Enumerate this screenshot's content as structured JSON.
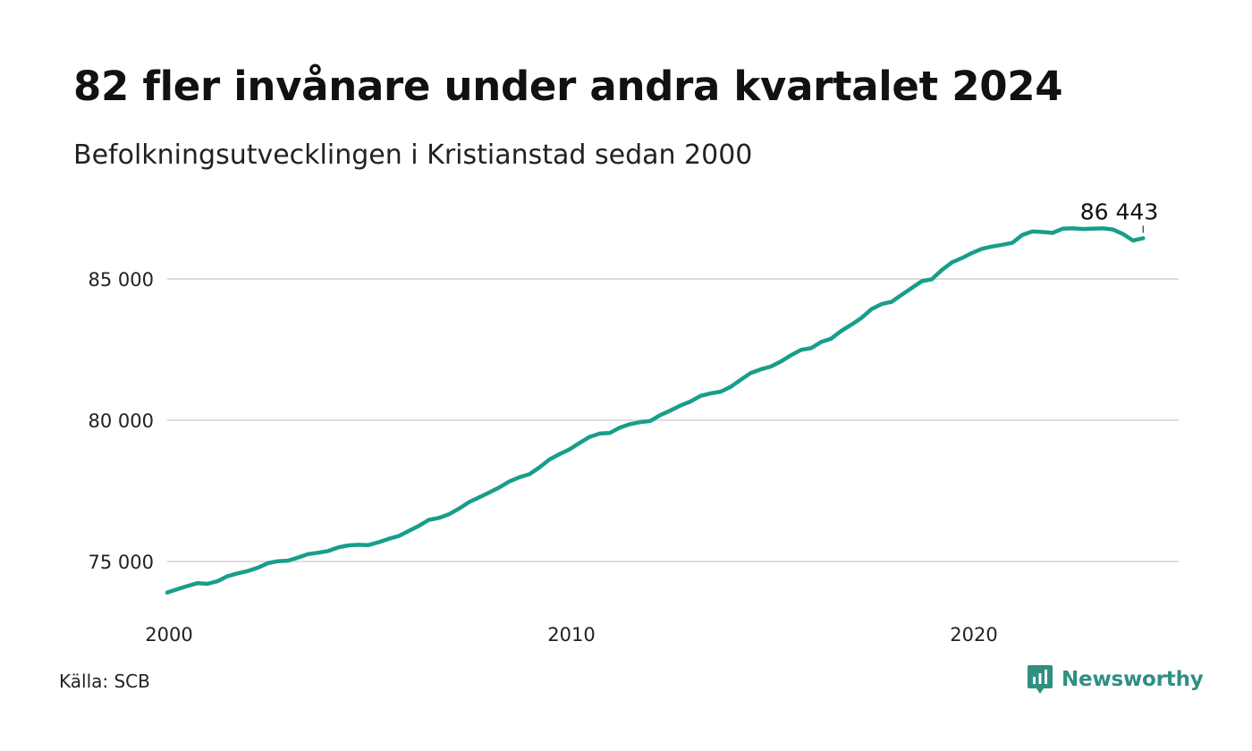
{
  "header": {
    "title": "82 fler invånare under andra kvartalet 2024",
    "subtitle": "Befolkningsutvecklingen i Kristianstad sedan 2000"
  },
  "footer": {
    "source": "Källa: SCB",
    "brand": "Newsworthy",
    "brand_icon": "newsworthy-logo-icon"
  },
  "colors": {
    "line": "#189e8a",
    "grid": "#dddddd",
    "brand": "#2e8f83",
    "text": "#111111"
  },
  "chart_data": {
    "type": "line",
    "title": "82 fler invånare under andra kvartalet 2024",
    "subtitle": "Befolkningsutvecklingen i Kristianstad sedan 2000",
    "xlabel": "",
    "ylabel": "",
    "x_ticks": [
      2000,
      2010,
      2020
    ],
    "y_ticks": [
      75000,
      80000,
      85000
    ],
    "y_tick_labels": [
      "75 000",
      "80 000",
      "85 000"
    ],
    "xlim": [
      2000,
      2025
    ],
    "ylim": [
      73500,
      87500
    ],
    "grid": "horizontal",
    "legend": "none",
    "end_label": "86 443",
    "series": [
      {
        "x": [
          2000.0,
          2000.25,
          2000.5,
          2000.75,
          2001.0,
          2001.25,
          2001.5,
          2001.75,
          2002.0,
          2002.25,
          2002.5,
          2002.75,
          2003.0,
          2003.25,
          2003.5,
          2003.75,
          2004.0,
          2004.25,
          2004.5,
          2004.75,
          2005.0,
          2005.25,
          2005.5,
          2005.75,
          2006.0,
          2006.25,
          2006.5,
          2006.75,
          2007.0,
          2007.25,
          2007.5,
          2007.75,
          2008.0,
          2008.25,
          2008.5,
          2008.75,
          2009.0,
          2009.25,
          2009.5,
          2009.75,
          2010.0,
          2010.25,
          2010.5,
          2010.75,
          2011.0,
          2011.25,
          2011.5,
          2011.75,
          2012.0,
          2012.25,
          2012.5,
          2012.75,
          2013.0,
          2013.25,
          2013.5,
          2013.75,
          2014.0,
          2014.25,
          2014.5,
          2014.75,
          2015.0,
          2015.25,
          2015.5,
          2015.75,
          2016.0,
          2016.25,
          2016.5,
          2016.75,
          2017.0,
          2017.25,
          2017.5,
          2017.75,
          2018.0,
          2018.25,
          2018.5,
          2018.75,
          2019.0,
          2019.25,
          2019.5,
          2019.75,
          2020.0,
          2020.25,
          2020.5,
          2020.75,
          2021.0,
          2021.25,
          2021.5,
          2021.75,
          2022.0,
          2022.25,
          2022.5,
          2022.75,
          2023.0,
          2023.25,
          2023.5,
          2023.75,
          2024.0,
          2024.25
        ],
        "y": [
          73900,
          74020,
          74130,
          74230,
          74210,
          74300,
          74480,
          74580,
          74660,
          74780,
          74940,
          75010,
          75030,
          75140,
          75260,
          75310,
          75370,
          75500,
          75570,
          75590,
          75580,
          75680,
          75800,
          75900,
          76080,
          76260,
          76470,
          76540,
          76670,
          76870,
          77100,
          77270,
          77440,
          77620,
          77830,
          77980,
          78090,
          78330,
          78610,
          78800,
          78970,
          79200,
          79410,
          79530,
          79550,
          79740,
          79860,
          79930,
          79970,
          80180,
          80340,
          80520,
          80660,
          80860,
          80950,
          81010,
          81180,
          81430,
          81670,
          81800,
          81900,
          82080,
          82300,
          82490,
          82550,
          82770,
          82890,
          83160,
          83380,
          83620,
          83930,
          84110,
          84190,
          84440,
          84680,
          84920,
          84990,
          85320,
          85590,
          85740,
          85920,
          86070,
          86150,
          86210,
          86280,
          86560,
          86680,
          86660,
          86630,
          86780,
          86790,
          86770,
          86780,
          86790,
          86750,
          86590,
          86361,
          86443
        ]
      }
    ]
  }
}
